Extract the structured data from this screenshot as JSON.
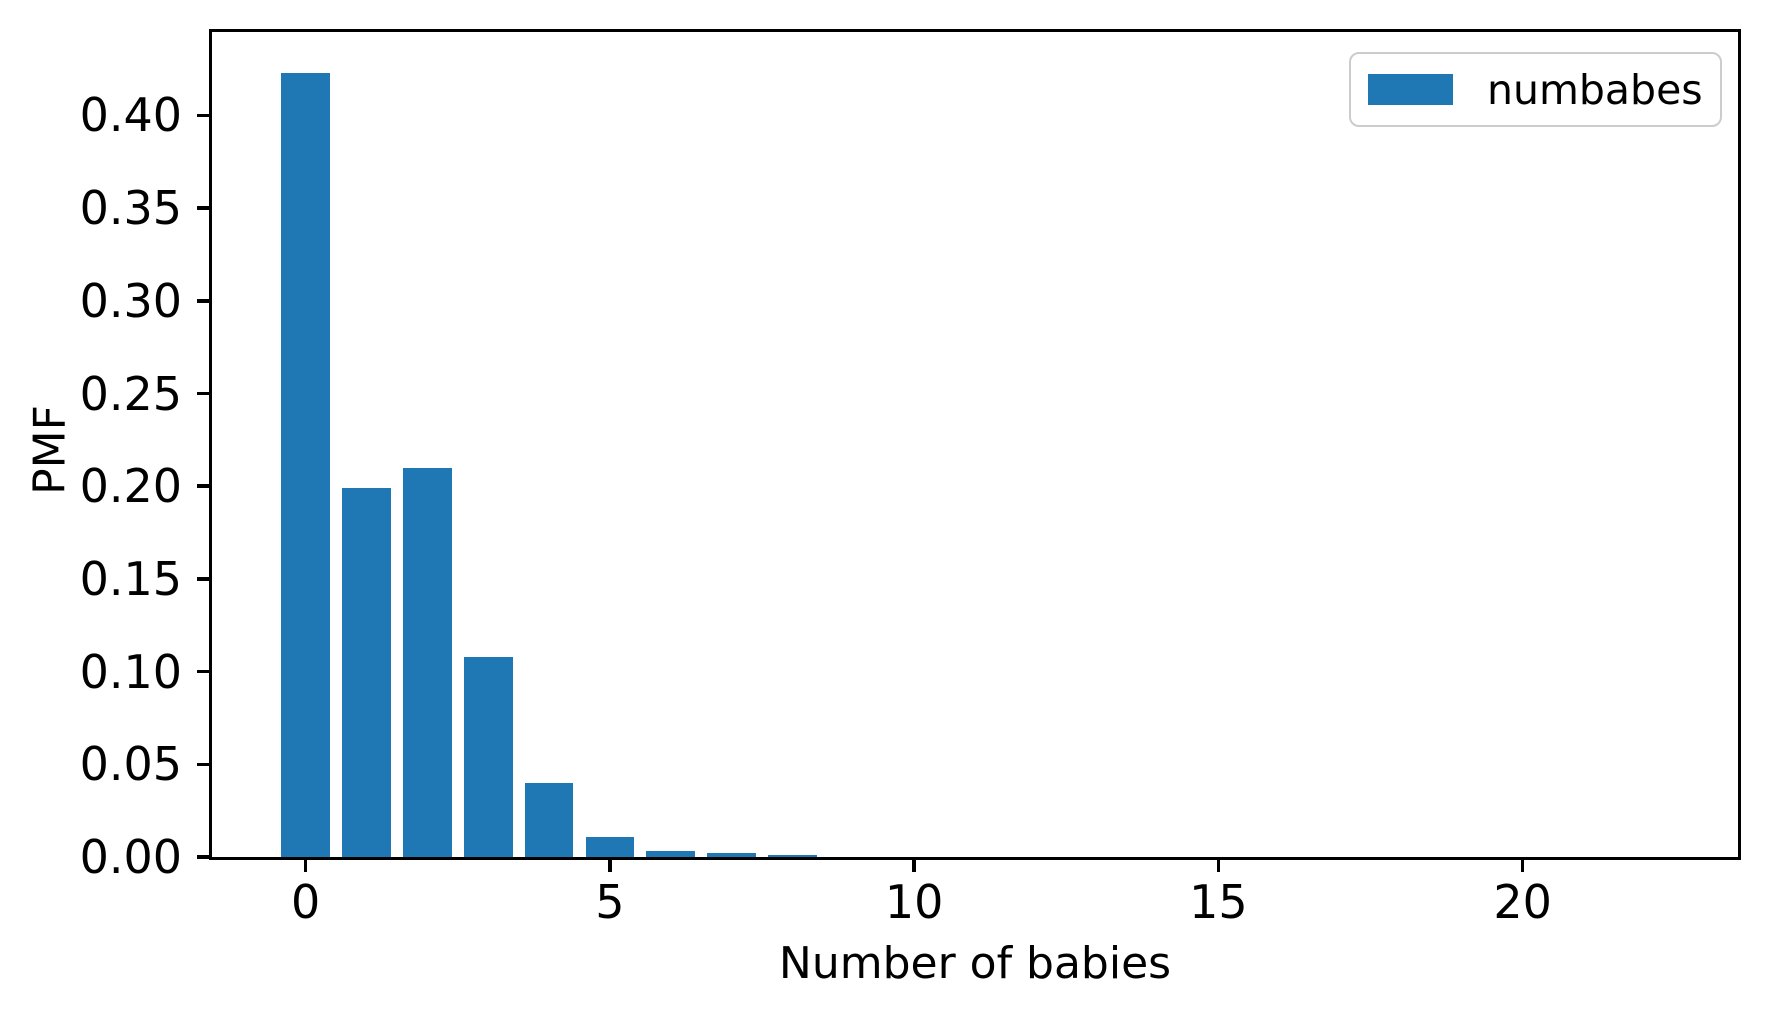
{
  "chart_data": {
    "type": "bar",
    "title": "",
    "xlabel": "Number of babies",
    "ylabel": "PMF",
    "x": [
      0,
      1,
      2,
      3,
      4,
      5,
      6,
      7,
      8
    ],
    "values": [
      0.423,
      0.199,
      0.21,
      0.108,
      0.04,
      0.011,
      0.003,
      0.002,
      0.001
    ],
    "series_label": "numbabes",
    "bar_color": "#1f77b4",
    "bar_width_units": 0.8,
    "xlim": [
      -1.54,
      23.54
    ],
    "ylim": [
      0,
      0.445
    ],
    "xticks": [
      0,
      5,
      10,
      15,
      20
    ],
    "xtick_labels": [
      "0",
      "5",
      "10",
      "15",
      "20"
    ],
    "yticks": [
      0.0,
      0.05,
      0.1,
      0.15,
      0.2,
      0.25,
      0.3,
      0.35,
      0.4
    ],
    "ytick_labels": [
      "0.00",
      "0.05",
      "0.10",
      "0.15",
      "0.20",
      "0.25",
      "0.30",
      "0.35",
      "0.40"
    ],
    "grid": false,
    "legend_position": "upper right"
  },
  "legend": {
    "label": "numbabes",
    "swatch_color": "#1f77b4",
    "border_color": "#cccccc"
  },
  "axes": {
    "xlabel": "Number of babies",
    "ylabel": "PMF",
    "spine_color": "#000000",
    "tick_color": "#000000"
  }
}
